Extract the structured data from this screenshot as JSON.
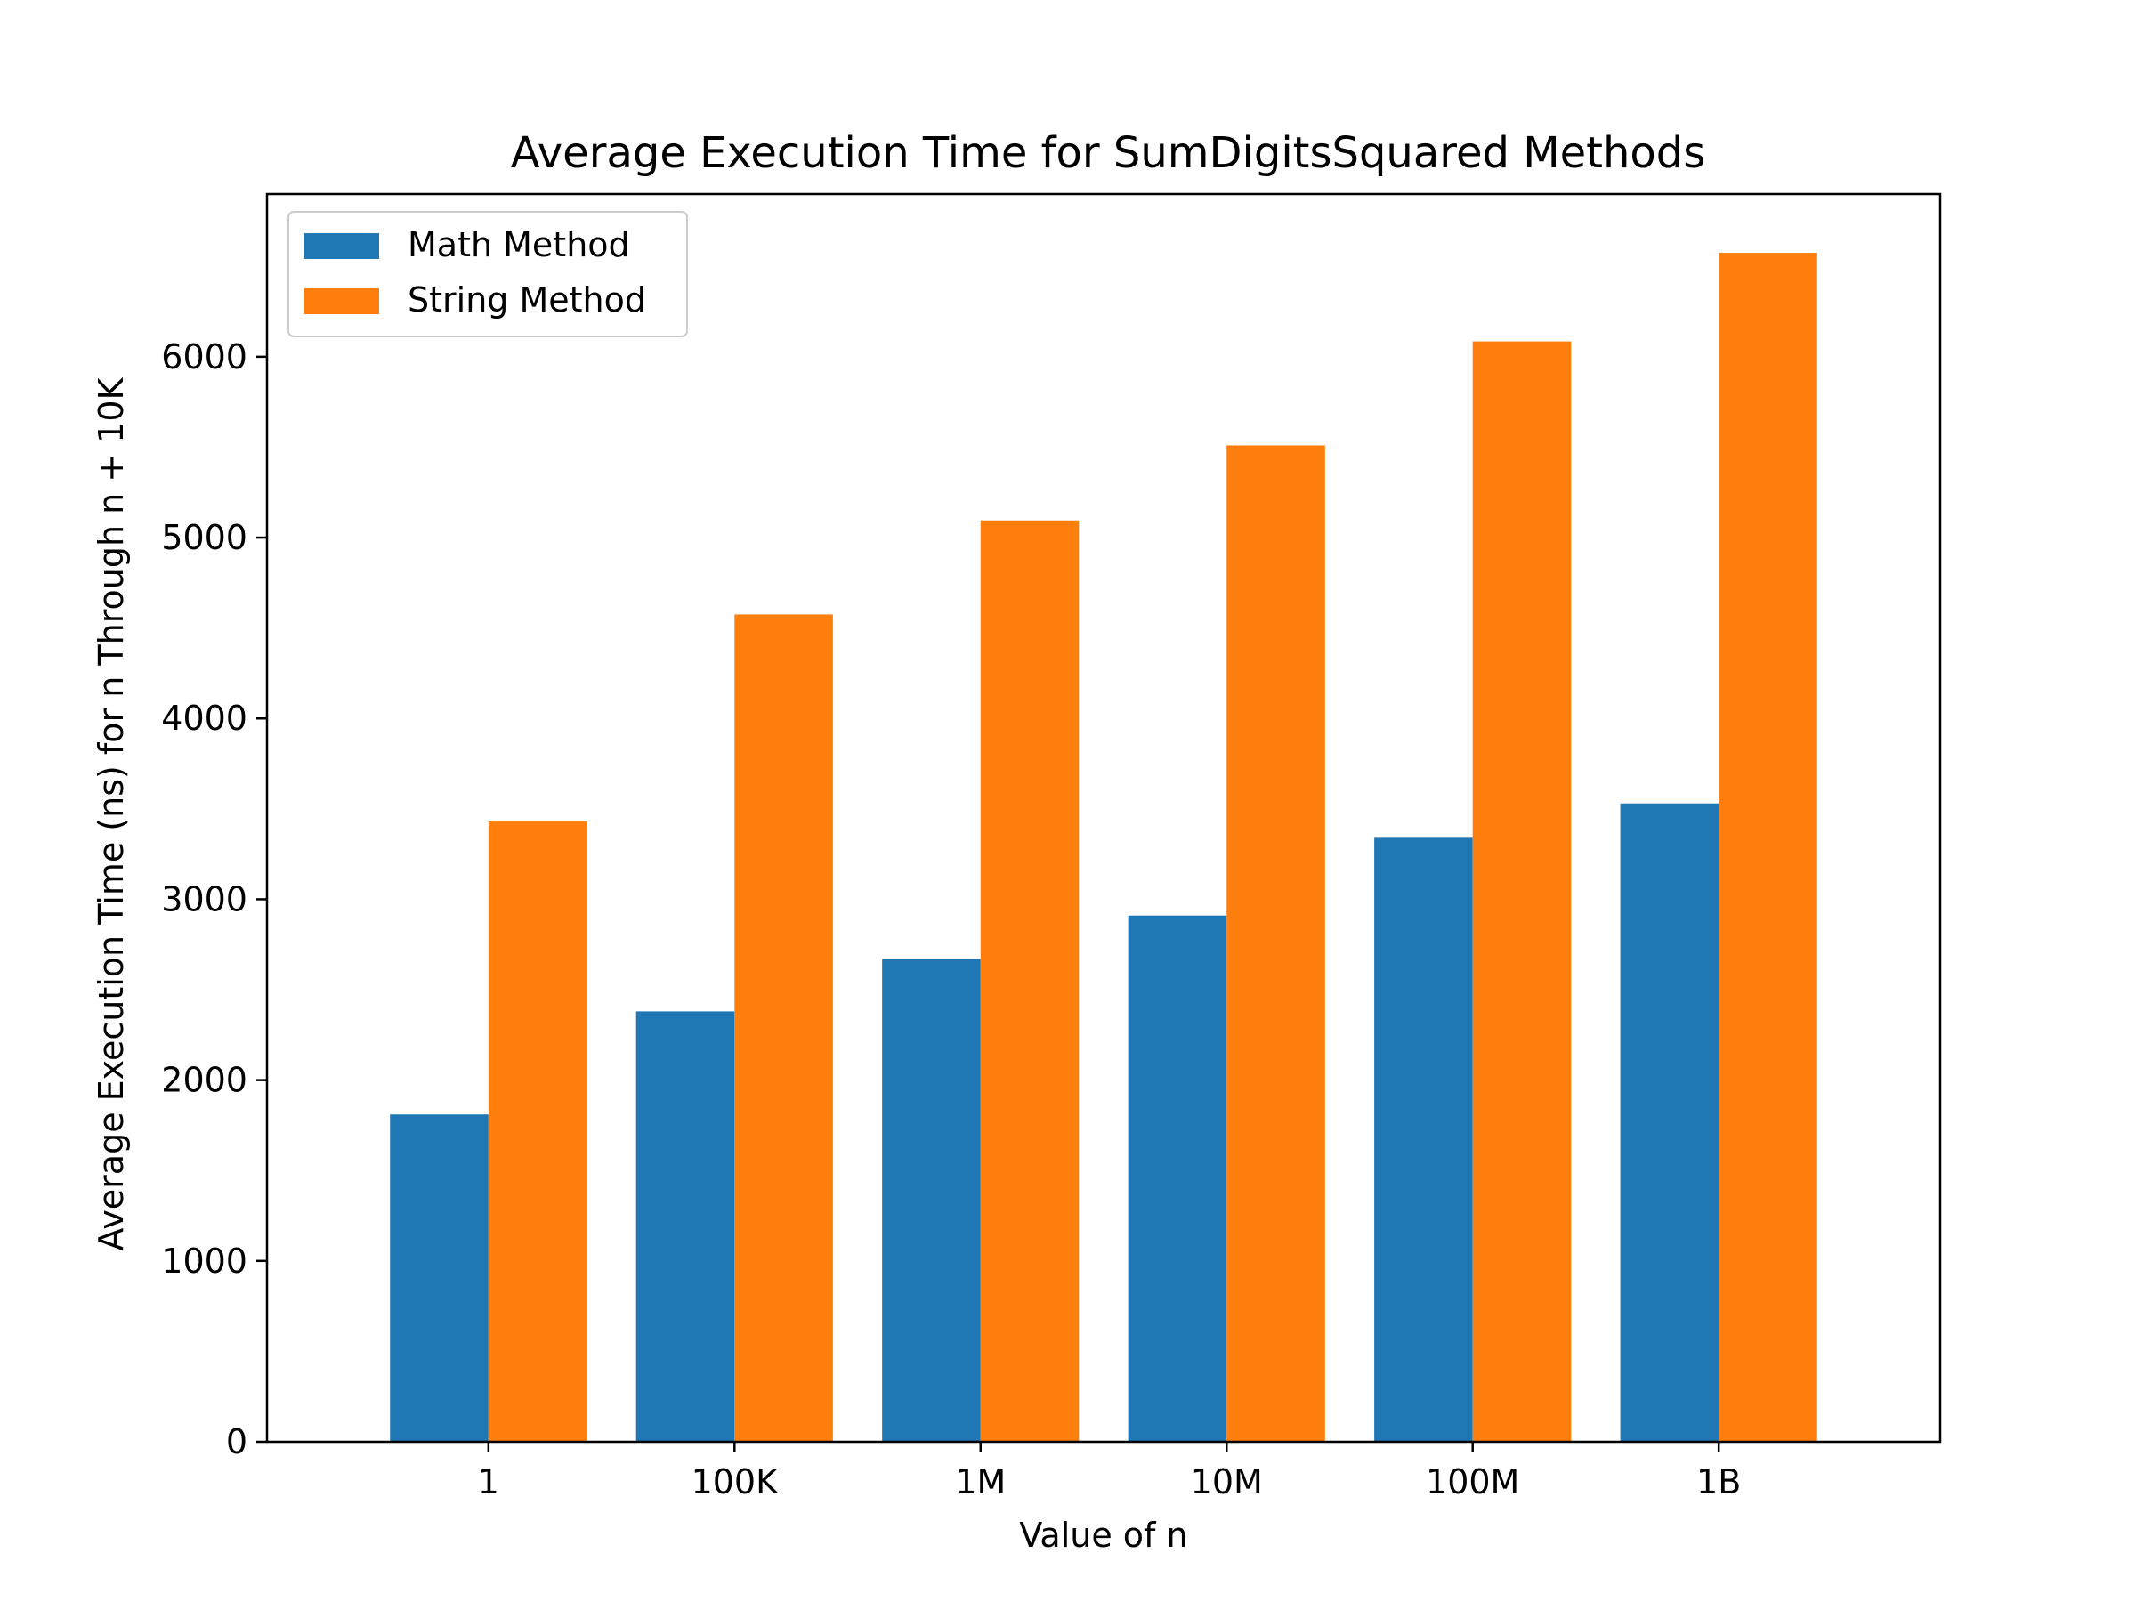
{
  "chart_data": {
    "type": "bar",
    "title": "Average Execution Time for SumDigitsSquared Methods",
    "xlabel": "Value of n",
    "ylabel": "Average Execution Time (ns) for n Through n + 10K",
    "categories": [
      "1",
      "100K",
      "1M",
      "10M",
      "100M",
      "1B"
    ],
    "series": [
      {
        "name": "Math Method",
        "color": "#1f77b4",
        "values": [
          1810,
          2380,
          2670,
          2910,
          3340,
          3530
        ]
      },
      {
        "name": "String Method",
        "color": "#ff7f0e",
        "values": [
          3430,
          4575,
          5095,
          5510,
          6085,
          6575
        ]
      }
    ],
    "ylim": [
      0,
      6900
    ],
    "yticks": [
      0,
      1000,
      2000,
      3000,
      4000,
      5000,
      6000
    ],
    "grid": false,
    "legend_position": "top-left"
  }
}
